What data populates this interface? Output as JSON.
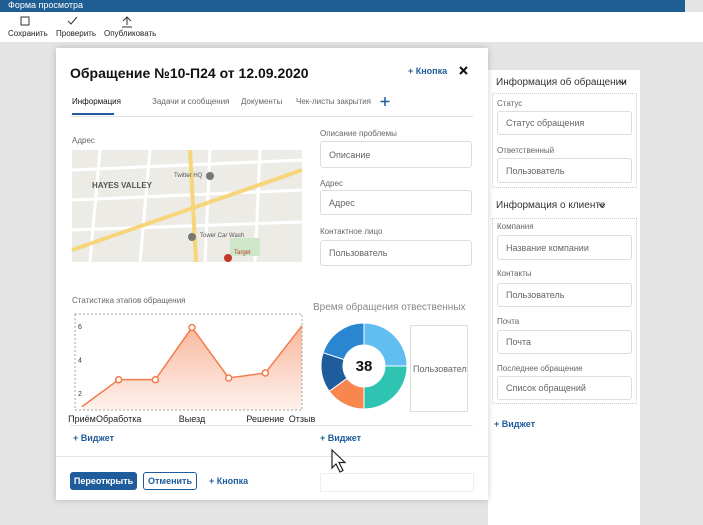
{
  "header": {
    "title": "Форма просмотра"
  },
  "toolbar": [
    "Сохранить",
    "Проверить",
    "Опубликовать"
  ],
  "modal": {
    "title": "Обращение  №10-П24 от 12.09.2020",
    "add_button": "+ Кнопка",
    "tabs": [
      "Информация",
      "Задачи и сообщения",
      "Документы",
      "Чек-листы закрытия"
    ],
    "address_label": "Адрес",
    "map": {
      "labels": [
        "HAYES VALLEY",
        "Twitter HQ",
        "Tower Car Wash",
        "Target"
      ]
    },
    "fields": [
      {
        "label": "Описание проблемы",
        "placeholder": "Описание"
      },
      {
        "label": "Адрес",
        "placeholder": "Адрес"
      },
      {
        "label": "Контактное лицо",
        "placeholder": "Пользователь"
      }
    ],
    "stats_chart": {
      "type": "line",
      "title": "Статистика этапов обращения",
      "categories": [
        "Приём",
        "Обработка",
        null,
        "Выезд",
        null,
        "Решение",
        "Отзыв"
      ],
      "values": [
        1.2,
        2.8,
        2.8,
        5.9,
        2.9,
        3.2,
        6
      ],
      "ylim": [
        1,
        6.7
      ],
      "yticks": [
        2,
        4,
        6
      ],
      "color": "#f47c4c"
    },
    "time_chart": {
      "type": "pie",
      "title": "Время обращения отвественных",
      "center_label": "38",
      "values": [
        25,
        25,
        15,
        15,
        20
      ],
      "colors": [
        "#62bdf0",
        "#2fc4b2",
        "#f7874f",
        "#1f5c9c",
        "#2b86d2"
      ]
    },
    "side_box": "Пользователи",
    "widget_buttons": [
      "+ Виджет",
      "+ Виджет"
    ],
    "footer": {
      "buttons": [
        "Переоткрыть",
        "Отменить",
        "+ Кнопка"
      ]
    }
  },
  "sidebar": {
    "sections": [
      {
        "title": "Информация об обращении",
        "fields": [
          {
            "label": "Статус",
            "placeholder": "Статус обращения"
          },
          {
            "label": "Ответственный",
            "placeholder": "Пользователь"
          }
        ]
      },
      {
        "title": "Информация о клиенте",
        "fields": [
          {
            "label": "Компания",
            "placeholder": "Название компании"
          },
          {
            "label": "Контакты",
            "placeholder": "Пользователь"
          },
          {
            "label": "Почта",
            "placeholder": "Почта"
          },
          {
            "label": "Последнее обращение",
            "placeholder": "Список обращений"
          }
        ]
      }
    ],
    "add_widget": "+ Виджет"
  }
}
